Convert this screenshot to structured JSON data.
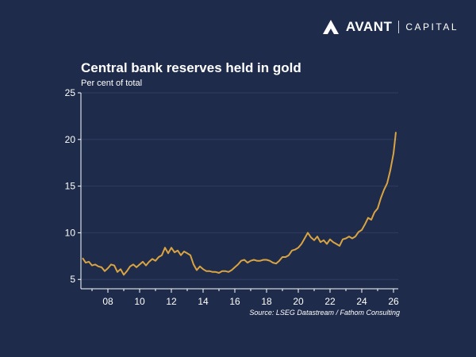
{
  "brand": {
    "name": "AVANT",
    "sub": "CAPITAL",
    "logo_icon": "avant-logo-icon"
  },
  "colors": {
    "background": "#1e2b4a",
    "line": "#d9a441",
    "axis": "#ffffff",
    "grid": "#2e3d61"
  },
  "chart_data": {
    "type": "line",
    "title": "Central bank reserves held in gold",
    "subtitle": "Per cent of total",
    "source": "Source: LSEG Datastream / Fathom Consulting",
    "xlabel": "",
    "ylabel": "",
    "ylim": [
      4,
      25
    ],
    "xlim": [
      2006.3,
      2026.3
    ],
    "yticks": [
      5,
      10,
      15,
      20,
      25
    ],
    "xticks": [
      {
        "value": 2008,
        "label": "08"
      },
      {
        "value": 2010,
        "label": "10"
      },
      {
        "value": 2012,
        "label": "12"
      },
      {
        "value": 2014,
        "label": "14"
      },
      {
        "value": 2016,
        "label": "16"
      },
      {
        "value": 2018,
        "label": "18"
      },
      {
        "value": 2020,
        "label": "20"
      },
      {
        "value": 2022,
        "label": "22"
      },
      {
        "value": 2024,
        "label": "24"
      },
      {
        "value": 2026,
        "label": "26"
      }
    ],
    "grid": true,
    "series": [
      {
        "points": [
          [
            2006.4,
            7.3
          ],
          [
            2006.6,
            6.8
          ],
          [
            2006.8,
            6.9
          ],
          [
            2007.0,
            6.5
          ],
          [
            2007.2,
            6.6
          ],
          [
            2007.4,
            6.4
          ],
          [
            2007.6,
            6.3
          ],
          [
            2007.8,
            5.9
          ],
          [
            2008.0,
            6.2
          ],
          [
            2008.2,
            6.6
          ],
          [
            2008.4,
            6.5
          ],
          [
            2008.6,
            5.8
          ],
          [
            2008.8,
            6.1
          ],
          [
            2009.0,
            5.5
          ],
          [
            2009.2,
            5.9
          ],
          [
            2009.4,
            6.4
          ],
          [
            2009.6,
            6.6
          ],
          [
            2009.8,
            6.3
          ],
          [
            2010.0,
            6.6
          ],
          [
            2010.2,
            6.9
          ],
          [
            2010.4,
            6.5
          ],
          [
            2010.6,
            6.9
          ],
          [
            2010.8,
            7.2
          ],
          [
            2011.0,
            7.0
          ],
          [
            2011.2,
            7.4
          ],
          [
            2011.4,
            7.6
          ],
          [
            2011.6,
            8.4
          ],
          [
            2011.8,
            7.8
          ],
          [
            2012.0,
            8.4
          ],
          [
            2012.2,
            7.9
          ],
          [
            2012.4,
            8.1
          ],
          [
            2012.6,
            7.6
          ],
          [
            2012.8,
            8.0
          ],
          [
            2013.0,
            7.8
          ],
          [
            2013.2,
            7.6
          ],
          [
            2013.4,
            6.6
          ],
          [
            2013.6,
            6.0
          ],
          [
            2013.8,
            6.4
          ],
          [
            2014.0,
            6.1
          ],
          [
            2014.2,
            5.9
          ],
          [
            2014.4,
            5.9
          ],
          [
            2014.6,
            5.8
          ],
          [
            2014.8,
            5.8
          ],
          [
            2015.0,
            5.7
          ],
          [
            2015.2,
            5.9
          ],
          [
            2015.4,
            5.9
          ],
          [
            2015.6,
            5.8
          ],
          [
            2015.8,
            6.0
          ],
          [
            2016.0,
            6.3
          ],
          [
            2016.2,
            6.6
          ],
          [
            2016.4,
            7.0
          ],
          [
            2016.6,
            7.1
          ],
          [
            2016.8,
            6.8
          ],
          [
            2017.0,
            7.0
          ],
          [
            2017.2,
            7.1
          ],
          [
            2017.4,
            7.0
          ],
          [
            2017.6,
            7.0
          ],
          [
            2017.8,
            7.1
          ],
          [
            2018.0,
            7.1
          ],
          [
            2018.2,
            7.0
          ],
          [
            2018.4,
            6.8
          ],
          [
            2018.6,
            6.7
          ],
          [
            2018.8,
            7.0
          ],
          [
            2019.0,
            7.4
          ],
          [
            2019.2,
            7.4
          ],
          [
            2019.4,
            7.6
          ],
          [
            2019.6,
            8.1
          ],
          [
            2019.8,
            8.2
          ],
          [
            2020.0,
            8.4
          ],
          [
            2020.2,
            8.8
          ],
          [
            2020.4,
            9.4
          ],
          [
            2020.6,
            10.0
          ],
          [
            2020.8,
            9.5
          ],
          [
            2021.0,
            9.2
          ],
          [
            2021.2,
            9.6
          ],
          [
            2021.4,
            9.0
          ],
          [
            2021.6,
            9.2
          ],
          [
            2021.8,
            8.8
          ],
          [
            2022.0,
            9.3
          ],
          [
            2022.2,
            9.0
          ],
          [
            2022.4,
            8.8
          ],
          [
            2022.6,
            8.6
          ],
          [
            2022.8,
            9.3
          ],
          [
            2023.0,
            9.4
          ],
          [
            2023.2,
            9.6
          ],
          [
            2023.4,
            9.4
          ],
          [
            2023.6,
            9.6
          ],
          [
            2023.8,
            10.1
          ],
          [
            2024.0,
            10.3
          ],
          [
            2024.2,
            10.9
          ],
          [
            2024.4,
            11.6
          ],
          [
            2024.6,
            11.4
          ],
          [
            2024.8,
            12.2
          ],
          [
            2025.0,
            12.6
          ],
          [
            2025.2,
            13.7
          ],
          [
            2025.4,
            14.6
          ],
          [
            2025.6,
            15.3
          ],
          [
            2025.8,
            16.7
          ],
          [
            2026.0,
            18.5
          ],
          [
            2026.1,
            20.0
          ],
          [
            2026.15,
            20.8
          ]
        ]
      }
    ]
  }
}
